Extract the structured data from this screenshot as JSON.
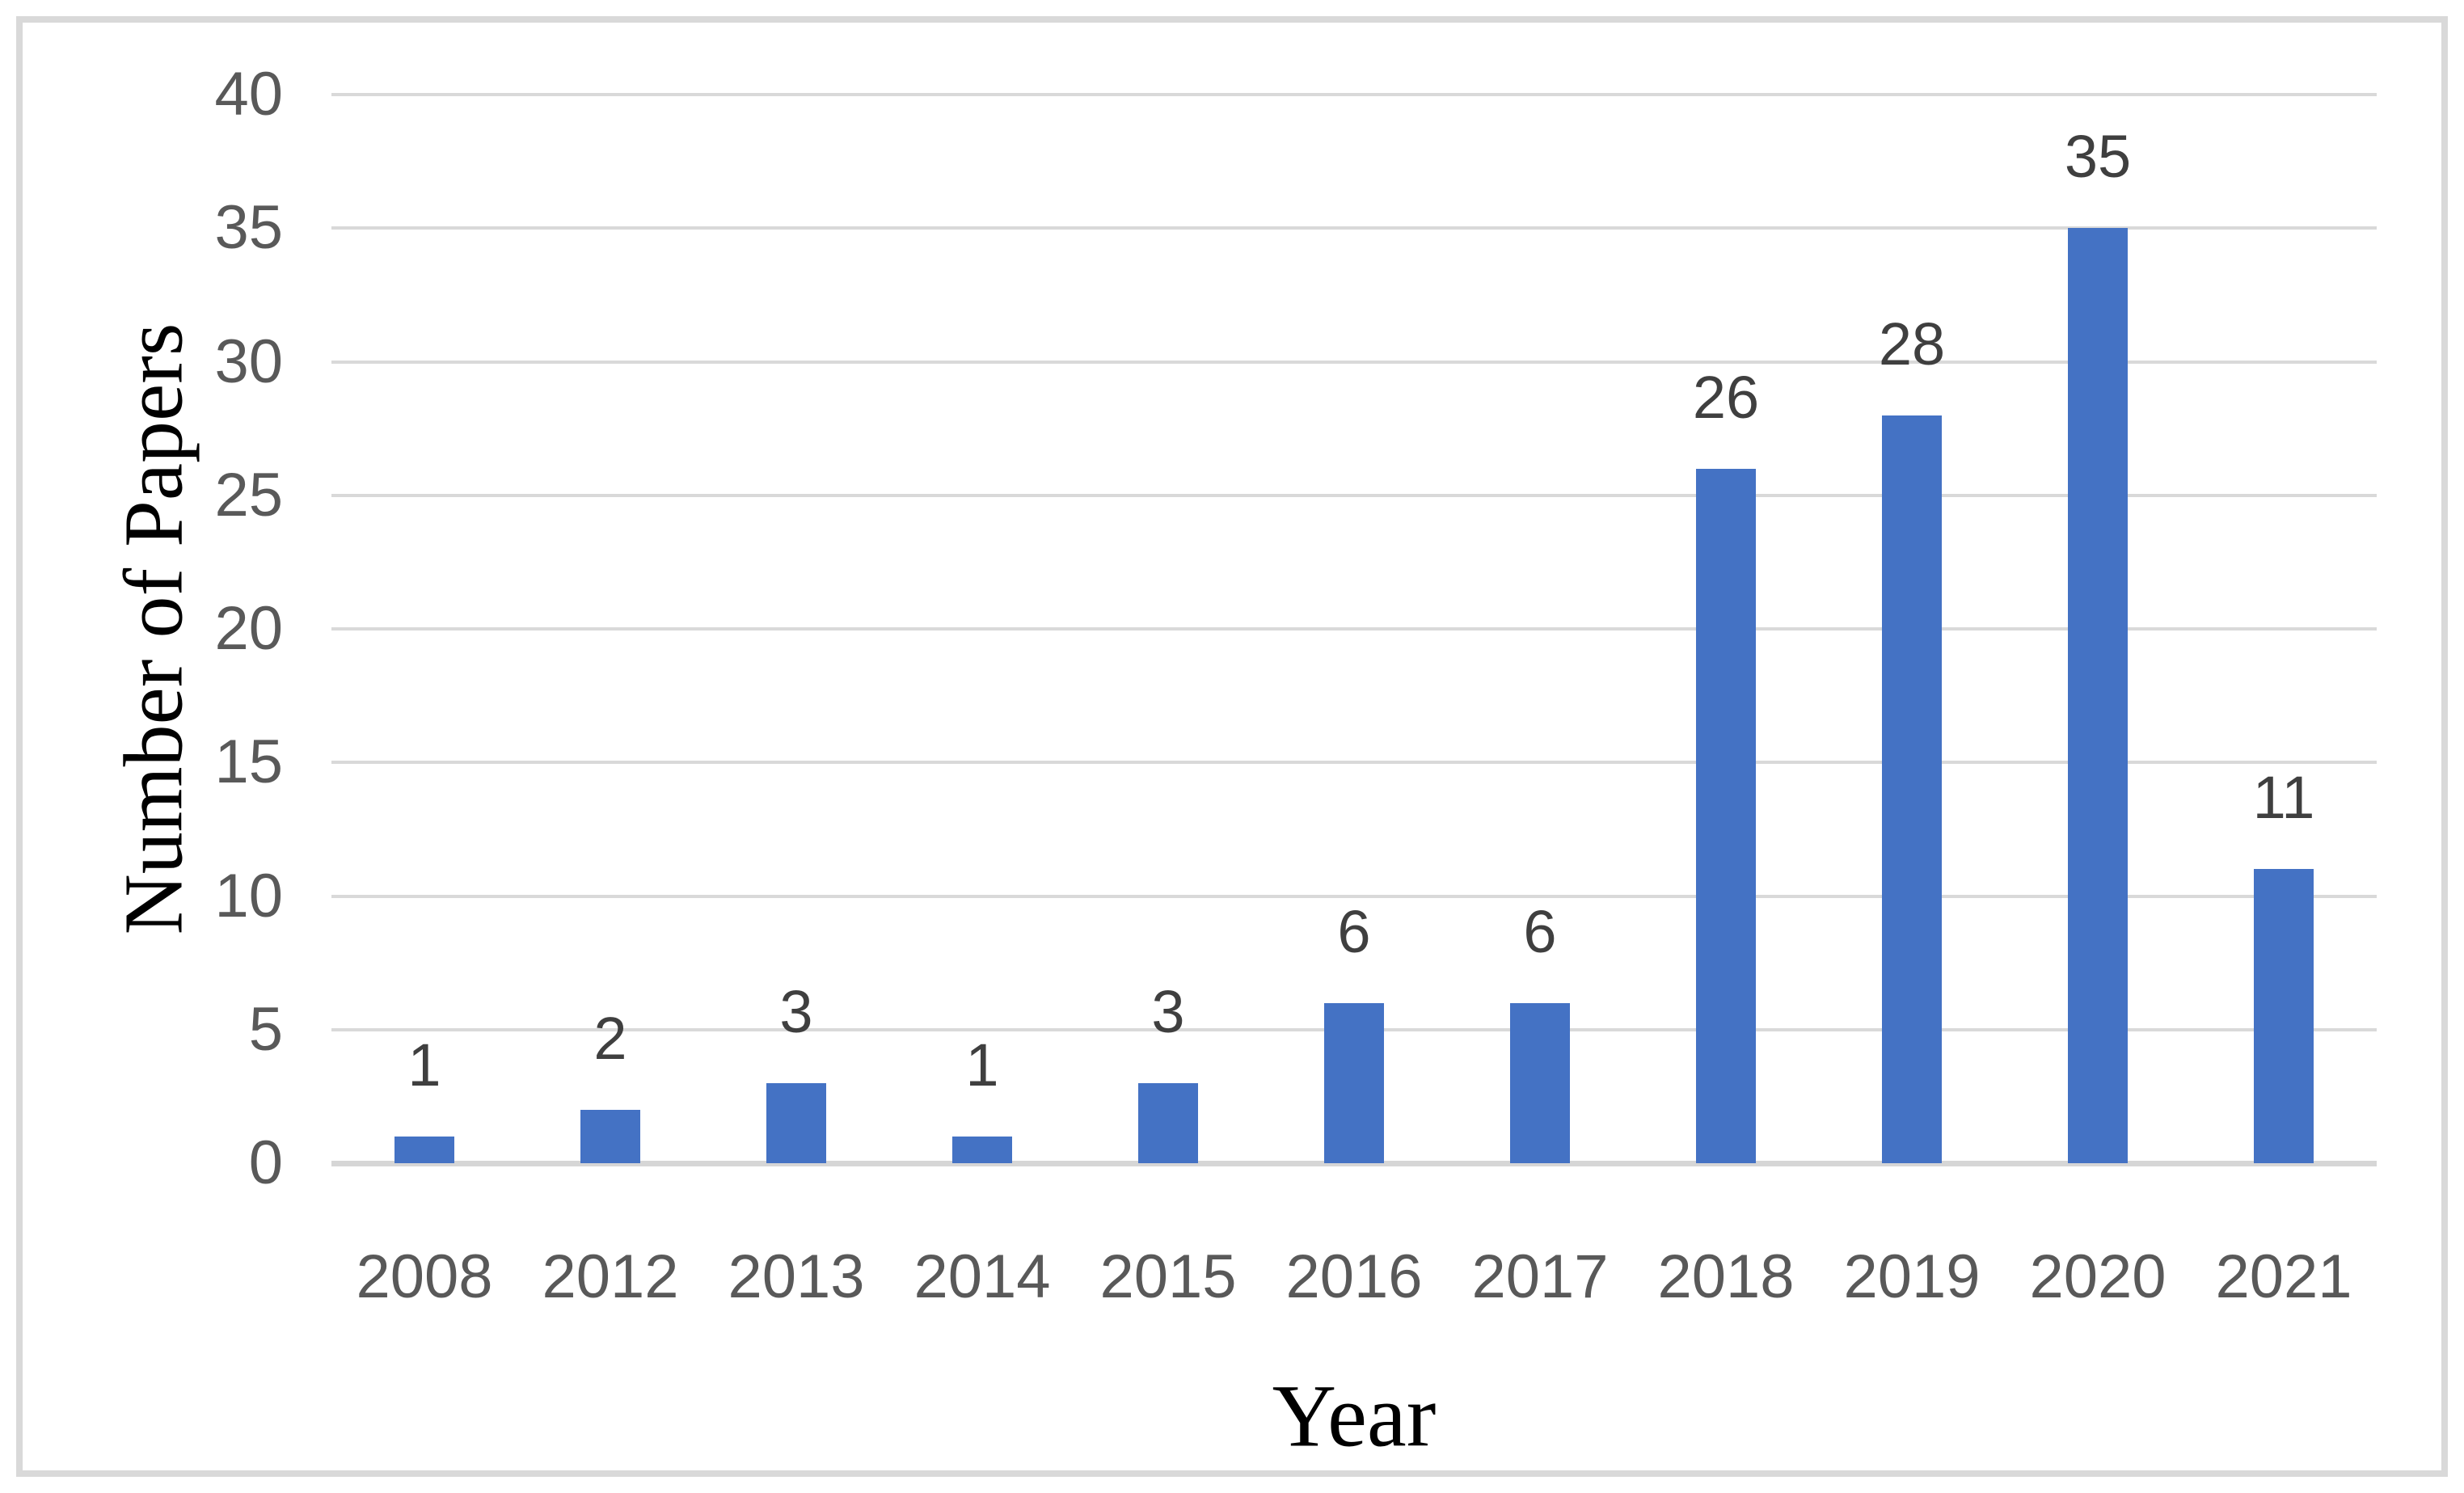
{
  "chart_data": {
    "type": "bar",
    "title": "",
    "categories": [
      "2008",
      "2012",
      "2013",
      "2014",
      "2015",
      "2016",
      "2017",
      "2018",
      "2019",
      "2020",
      "2021"
    ],
    "values": [
      1,
      2,
      3,
      1,
      3,
      6,
      6,
      26,
      28,
      35,
      11
    ],
    "xlabel": "Year",
    "ylabel": "Number of Papers",
    "ylim": [
      0,
      40
    ],
    "yticks": [
      0,
      5,
      10,
      15,
      20,
      25,
      30,
      35,
      40
    ],
    "grid": "horizontal",
    "legend_position": "none",
    "data_labels_shown": true,
    "colors": {
      "bar": "#4472C4",
      "gridline": "#D9D9D9",
      "axis_line": "#D6D6D6",
      "tick_label": "#595959",
      "data_label": "#3F3F3F",
      "axis_title": "#000000",
      "frame_border": "#D9D9D9",
      "background": "#FFFFFF"
    }
  }
}
